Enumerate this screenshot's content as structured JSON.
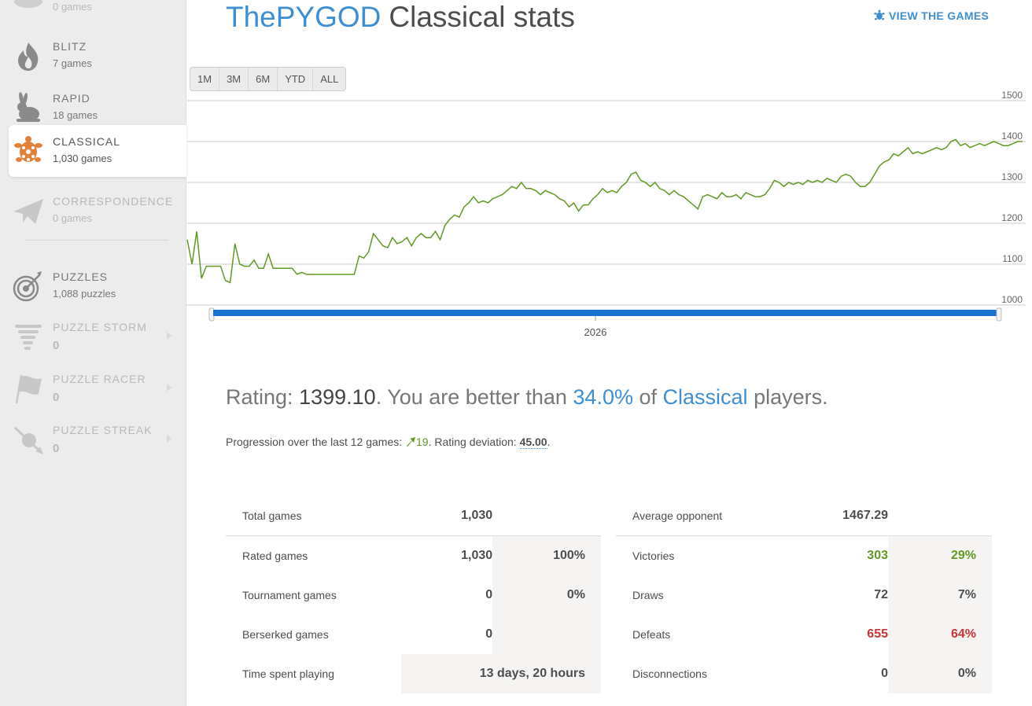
{
  "sidebar": {
    "items": [
      {
        "title": "",
        "sub": "0 games"
      },
      {
        "title": "Blitz",
        "sub": "7 games"
      },
      {
        "title": "Rapid",
        "sub": "18 games"
      },
      {
        "title": "Classical",
        "sub": "1,030 games"
      },
      {
        "title": "Correspondence",
        "sub": "0 games"
      },
      {
        "title": "Puzzles",
        "sub": "1,088 puzzles"
      },
      {
        "title": "Puzzle Storm",
        "sub": "0"
      },
      {
        "title": "Puzzle Racer",
        "sub": "0"
      },
      {
        "title": "Puzzle Streak",
        "sub": "0"
      }
    ]
  },
  "header": {
    "username": "ThePYGOD",
    "title": "Classical stats",
    "view_games": "VIEW THE GAMES"
  },
  "ranges": [
    "1M",
    "3M",
    "6M",
    "YTD",
    "ALL"
  ],
  "chart_data": {
    "type": "line",
    "y_ticks": [
      "1500",
      "1400",
      "1300",
      "1200",
      "1100",
      "1000"
    ],
    "ylim": [
      1000,
      1500
    ],
    "x_label": "2026",
    "series": [
      {
        "color": "#629924",
        "values": [
          1160,
          1100,
          1180,
          1065,
          1095,
          1095,
          1095,
          1095,
          1060,
          1055,
          1150,
          1100,
          1095,
          1095,
          1110,
          1090,
          1090,
          1125,
          1090,
          1090,
          1090,
          1090,
          1090,
          1075,
          1080,
          1075,
          1075,
          1075,
          1075,
          1075,
          1075,
          1075,
          1075,
          1075,
          1075,
          1075,
          1120,
          1115,
          1130,
          1175,
          1160,
          1145,
          1140,
          1165,
          1150,
          1155,
          1165,
          1145,
          1165,
          1175,
          1165,
          1165,
          1180,
          1160,
          1195,
          1210,
          1220,
          1215,
          1240,
          1250,
          1265,
          1250,
          1255,
          1250,
          1260,
          1265,
          1270,
          1280,
          1290,
          1285,
          1300,
          1285,
          1285,
          1280,
          1270,
          1280,
          1275,
          1270,
          1260,
          1255,
          1240,
          1250,
          1230,
          1245,
          1245,
          1260,
          1270,
          1285,
          1275,
          1280,
          1275,
          1290,
          1300,
          1320,
          1325,
          1305,
          1300,
          1290,
          1300,
          1285,
          1280,
          1270,
          1280,
          1270,
          1265,
          1255,
          1245,
          1235,
          1265,
          1270,
          1265,
          1260,
          1275,
          1265,
          1265,
          1270,
          1260,
          1275,
          1270,
          1265,
          1265,
          1270,
          1285,
          1305,
          1300,
          1290,
          1300,
          1295,
          1300,
          1295,
          1305,
          1300,
          1305,
          1300,
          1310,
          1305,
          1300,
          1315,
          1320,
          1315,
          1300,
          1290,
          1290,
          1300,
          1320,
          1340,
          1350,
          1355,
          1370,
          1365,
          1375,
          1385,
          1370,
          1375,
          1370,
          1375,
          1380,
          1385,
          1380,
          1385,
          1400,
          1405,
          1390,
          1395,
          1385,
          1390,
          1395,
          1390,
          1395,
          1400,
          1395,
          1390,
          1390,
          1395,
          1400,
          1400
        ]
      }
    ]
  },
  "rating": {
    "prefix": "Rating:",
    "value": "1399.10",
    "middle": ". You are better than",
    "percent": "34.0%",
    "of": "of",
    "category": "Classical",
    "suffix": "players."
  },
  "progression": {
    "text": "Progression over the last 12 games:",
    "value": "19",
    "dev_label": ". Rating deviation:",
    "dev_value": "45.00",
    "end": "."
  },
  "left_table": [
    {
      "label": "Total games",
      "value": "1,030",
      "pct": ""
    },
    {
      "label": "Rated games",
      "value": "1,030",
      "pct": "100%"
    },
    {
      "label": "Tournament games",
      "value": "0",
      "pct": "0%"
    },
    {
      "label": "Berserked games",
      "value": "0",
      "pct": ""
    },
    {
      "label": "Time spent playing",
      "value": "13 days, 20 hours",
      "pct": ""
    }
  ],
  "right_table": [
    {
      "label": "Average opponent",
      "value": "1467.29",
      "pct": ""
    },
    {
      "label": "Victories",
      "value": "303",
      "pct": "29%"
    },
    {
      "label": "Draws",
      "value": "72",
      "pct": "7%"
    },
    {
      "label": "Defeats",
      "value": "655",
      "pct": "64%"
    },
    {
      "label": "Disconnections",
      "value": "0",
      "pct": "0%"
    }
  ]
}
